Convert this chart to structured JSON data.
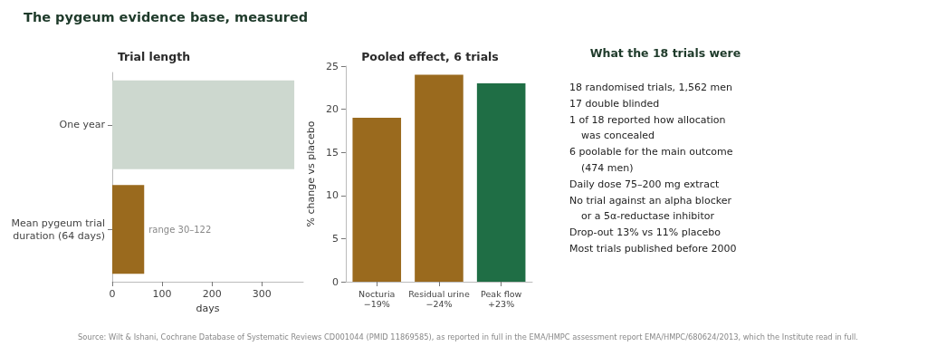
{
  "chart_data": [
    {
      "type": "bar",
      "orientation": "horizontal",
      "title": "Trial length",
      "xlabel": "days",
      "categories": [
        "One year",
        "Mean pygeum trial\nduration (64 days)"
      ],
      "values": [
        365,
        64
      ],
      "colors": [
        "#cdd8cf",
        "#9a6a1e"
      ],
      "xlim": [
        0,
        383
      ],
      "xticks": [
        0,
        100,
        200,
        300
      ],
      "grid": false,
      "annotations": [
        "The pygeum evidence base, measured",
        {
          "text": "range 30–122",
          "x": 64,
          "y": "Mean pygeum trial\nduration (64 days)"
        },
        "Source: Wilt & Ishani, Cochrane Database of Systematic Reviews CD001044 (PMID 11869585), as reported in full in the EMA/HMPC assessment report EMA/HMPC/680624/2013, which the Institute read in full."
      ]
    },
    {
      "type": "bar",
      "title": "Pooled effect, 6 trials",
      "ylabel": "% change vs placebo",
      "categories": [
        "Nocturia\n−19%",
        "Residual urine\n−24%",
        "Peak flow\n+23%"
      ],
      "values": [
        19,
        24,
        23
      ],
      "colors": [
        "#9a6a1e",
        "#9a6a1e",
        "#1f6e45"
      ],
      "ylim": [
        0,
        25
      ],
      "yticks": [
        0,
        5,
        10,
        15,
        20,
        25
      ],
      "grid": false
    },
    {
      "type": "other",
      "title": "What the 18 trials were",
      "annotations": [
        "18 randomised trials, 1,562 men",
        "17 double blinded",
        "1 of 18 reported how allocation\nwas concealed",
        "6 poolable for the main outcome\n(474 men)",
        "Daily dose 75–200 mg extract",
        "No trial against an alpha blocker\nor a 5α-reductase inhibitor",
        "Drop-out 13% vs 11% placebo",
        "Most trials published before 2000"
      ]
    }
  ]
}
